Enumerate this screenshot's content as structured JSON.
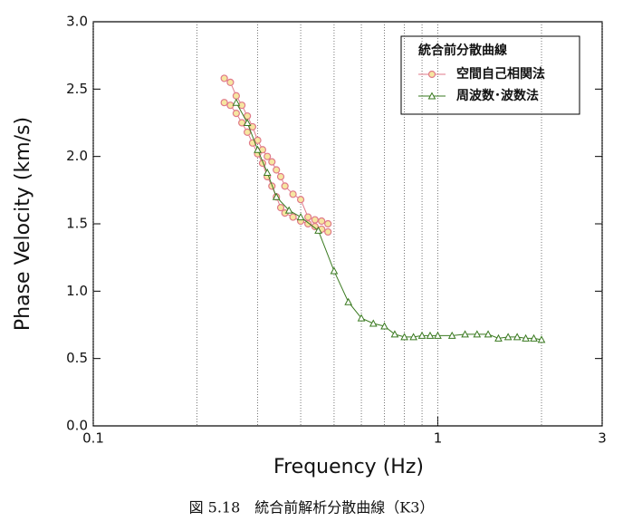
{
  "chart_data": {
    "type": "line",
    "log_x": true,
    "xlabel": "Frequency (Hz)",
    "ylabel": "Phase Velocity (km/s)",
    "caption": "図 5.18　統合前解析分散曲線（K3）",
    "legend_title": "統合前分散曲線",
    "legend": "upper right",
    "xlim": [
      0.1,
      3
    ],
    "xticks": [
      0.1,
      1,
      3
    ],
    "xgrid": [
      0.2,
      0.3,
      0.4,
      0.5,
      0.6,
      0.7,
      0.8,
      0.9,
      2
    ],
    "ylim": [
      0,
      3
    ],
    "yticks": [
      {
        "value": 0,
        "label": "0.0"
      },
      {
        "value": 0.5,
        "label": "0.5"
      },
      {
        "value": 1,
        "label": "1.0"
      },
      {
        "value": 1.5,
        "label": "1.5"
      },
      {
        "value": 2,
        "label": "2.0"
      },
      {
        "value": 2.5,
        "label": "2.5"
      },
      {
        "value": 3,
        "label": "3.0"
      }
    ],
    "series": [
      {
        "name": "空間自己相関法",
        "color": "#e07a8a",
        "marker": "circle",
        "x": [
          0.24,
          0.25,
          0.26,
          0.27,
          0.28,
          0.29,
          0.3,
          0.31,
          0.32,
          0.33,
          0.34,
          0.35,
          0.36,
          0.38,
          0.4,
          0.42,
          0.44,
          0.46,
          0.48,
          null,
          0.24,
          0.25,
          0.26,
          0.27,
          0.28,
          0.29,
          0.3,
          0.31,
          0.32,
          0.33,
          0.34,
          0.35,
          0.36,
          0.38,
          0.4,
          0.42,
          0.44,
          0.46,
          0.48
        ],
        "values": [
          2.58,
          2.55,
          2.45,
          2.38,
          2.3,
          2.22,
          2.12,
          2.05,
          2.0,
          1.96,
          1.9,
          1.85,
          1.78,
          1.72,
          1.68,
          1.55,
          1.53,
          1.52,
          1.5,
          null,
          2.4,
          2.38,
          2.32,
          2.25,
          2.18,
          2.1,
          2.02,
          1.95,
          1.85,
          1.78,
          1.7,
          1.62,
          1.58,
          1.55,
          1.52,
          1.5,
          1.48,
          1.46,
          1.44
        ]
      },
      {
        "name": "周波数･波数法",
        "color": "#3a7a20",
        "marker": "triangle",
        "x": [
          0.26,
          0.28,
          0.3,
          0.32,
          0.34,
          0.37,
          0.4,
          0.45,
          0.5,
          0.55,
          0.6,
          0.65,
          0.7,
          0.75,
          0.8,
          0.85,
          0.9,
          0.95,
          1.0,
          1.1,
          1.2,
          1.3,
          1.4,
          1.5,
          1.6,
          1.7,
          1.8,
          1.9,
          2.0
        ],
        "values": [
          2.4,
          2.25,
          2.05,
          1.88,
          1.7,
          1.6,
          1.55,
          1.45,
          1.15,
          0.92,
          0.8,
          0.76,
          0.74,
          0.68,
          0.66,
          0.66,
          0.67,
          0.67,
          0.67,
          0.67,
          0.68,
          0.68,
          0.68,
          0.65,
          0.66,
          0.66,
          0.65,
          0.65,
          0.64
        ]
      }
    ]
  }
}
